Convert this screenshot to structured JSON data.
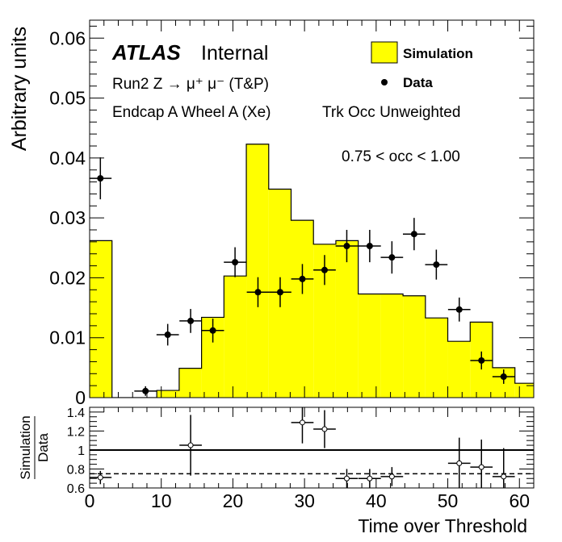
{
  "chart_data": [
    {
      "type": "bar",
      "panel": "main",
      "ylabel": "Arbitrary units",
      "xlim": [
        0,
        62
      ],
      "ylim": [
        0,
        0.063
      ],
      "yticks": [
        "0",
        "0.01",
        "0.02",
        "0.03",
        "0.04",
        "0.05",
        "0.06"
      ],
      "annotations": {
        "atlas": "ATLAS",
        "internal": "Internal",
        "process": "Run2 Z → μ⁺ μ⁻ (T&P)",
        "region": "Endcap A Wheel A (Xe)",
        "weighting": "Trk Occ Unweighted",
        "occupancy": "0.75 < occ < 1.00"
      },
      "legend": {
        "position": "top-right",
        "simulation": "Simulation",
        "data": "Data"
      },
      "series": [
        {
          "name": "Simulation",
          "style": "filled-histogram",
          "color": "#ffff00",
          "bin_edges": [
            0.0,
            3.125,
            6.25,
            9.375,
            12.5,
            15.625,
            18.75,
            21.875,
            25.0,
            28.125,
            31.25,
            34.375,
            37.5,
            40.625,
            43.75,
            46.875,
            50.0,
            53.125,
            56.25,
            59.375,
            62.5
          ],
          "values": [
            0.0262,
            0.0,
            0.0,
            0.0012,
            0.0049,
            0.0134,
            0.0203,
            0.0423,
            0.0348,
            0.0296,
            0.0256,
            0.0262,
            0.0173,
            0.0173,
            0.017,
            0.0133,
            0.0094,
            0.0126,
            0.005,
            0.0024
          ]
        },
        {
          "name": "Data",
          "style": "points-with-errors",
          "color": "#000000",
          "x": [
            1.5,
            7.8,
            10.9,
            14.1,
            17.2,
            20.3,
            23.5,
            26.6,
            29.7,
            32.8,
            35.9,
            39.1,
            42.2,
            45.3,
            48.4,
            51.6,
            54.7,
            57.8
          ],
          "y": [
            0.0366,
            0.0011,
            0.0105,
            0.0128,
            0.0112,
            0.0226,
            0.0176,
            0.0176,
            0.0198,
            0.0213,
            0.0253,
            0.0253,
            0.0234,
            0.0273,
            0.0222,
            0.0147,
            0.0062,
            0.0035
          ],
          "yerr": [
            0.0035,
            0.0008,
            0.0018,
            0.002,
            0.002,
            0.0025,
            0.0025,
            0.0025,
            0.0025,
            0.0025,
            0.0027,
            0.0027,
            0.0027,
            0.0027,
            0.0025,
            0.002,
            0.0015,
            0.0012
          ]
        }
      ]
    },
    {
      "type": "scatter",
      "panel": "ratio",
      "xlabel": "Time over Threshold",
      "ylabel": "Simulation / Data",
      "ylabel_numerator": "Simulation",
      "ylabel_denominator": "Data",
      "xlim": [
        0,
        62
      ],
      "ylim": [
        0.6,
        1.45
      ],
      "xticks": [
        "0",
        "10",
        "20",
        "30",
        "40",
        "50",
        "60"
      ],
      "yticks": [
        "0.6",
        "0.8",
        "1",
        "1.2",
        "1.4"
      ],
      "reference_lines": [
        {
          "y": 1.0,
          "style": "solid"
        },
        {
          "y": 0.75,
          "style": "dashed"
        }
      ],
      "series": [
        {
          "name": "Simulation / Data",
          "style": "open-points-with-errors",
          "x": [
            1.5,
            14.1,
            29.7,
            32.8,
            35.9,
            39.1,
            42.2,
            51.6,
            54.7,
            57.8
          ],
          "y": [
            0.71,
            1.05,
            1.29,
            1.22,
            0.7,
            0.7,
            0.72,
            0.86,
            0.82,
            0.72
          ],
          "yerr": [
            0.07,
            0.32,
            0.22,
            0.2,
            0.1,
            0.1,
            0.1,
            0.27,
            0.29,
            0.3
          ]
        }
      ]
    }
  ]
}
